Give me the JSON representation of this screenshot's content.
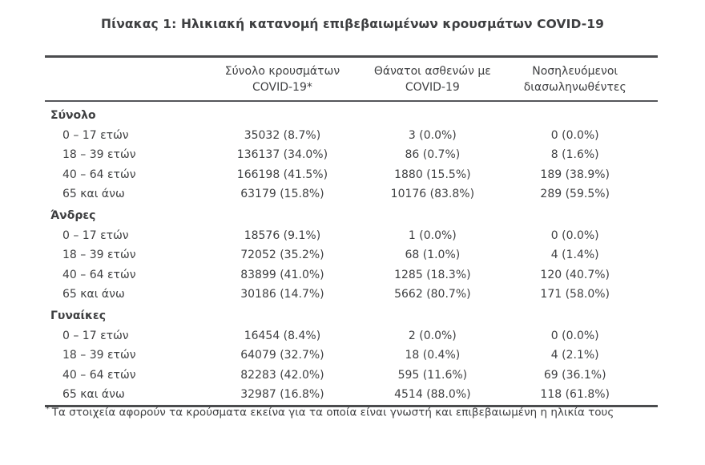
{
  "title": "Πίνακας 1: Ηλικιακή κατανομή επιβεβαιωμένων κρουσμάτων COVID-19",
  "colors": {
    "text": "#3e3f41",
    "border": "#4b4c4e",
    "background": "#ffffff"
  },
  "table": {
    "headers": [
      {
        "line1": "Σύνολο κρουσμάτων",
        "line2": "COVID-19*"
      },
      {
        "line1": "Θάνατοι ασθενών με",
        "line2": "COVID-19"
      },
      {
        "line1": "Νοσηλευόμενοι",
        "line2": "διασωληνωθέντες"
      }
    ],
    "sections": [
      {
        "name": "Σύνολο",
        "rows": [
          {
            "age": "0 – 17 ετών",
            "cases": "35032 (8.7%)",
            "deaths": "3 (0.0%)",
            "intubated": "0 (0.0%)"
          },
          {
            "age": "18 – 39 ετών",
            "cases": "136137 (34.0%)",
            "deaths": "86 (0.7%)",
            "intubated": "8 (1.6%)"
          },
          {
            "age": "40 – 64 ετών",
            "cases": "166198 (41.5%)",
            "deaths": "1880 (15.5%)",
            "intubated": "189 (38.9%)"
          },
          {
            "age": "65 και άνω",
            "cases": "63179 (15.8%)",
            "deaths": "10176 (83.8%)",
            "intubated": "289 (59.5%)"
          }
        ]
      },
      {
        "name": "Άνδρες",
        "rows": [
          {
            "age": "0 – 17 ετών",
            "cases": "18576 (9.1%)",
            "deaths": "1 (0.0%)",
            "intubated": "0 (0.0%)"
          },
          {
            "age": "18 – 39 ετών",
            "cases": "72052 (35.2%)",
            "deaths": "68 (1.0%)",
            "intubated": "4 (1.4%)"
          },
          {
            "age": "40 – 64 ετών",
            "cases": "83899 (41.0%)",
            "deaths": "1285 (18.3%)",
            "intubated": "120 (40.7%)"
          },
          {
            "age": "65 και άνω",
            "cases": "30186 (14.7%)",
            "deaths": "5662 (80.7%)",
            "intubated": "171 (58.0%)"
          }
        ]
      },
      {
        "name": "Γυναίκες",
        "rows": [
          {
            "age": "0 – 17 ετών",
            "cases": "16454 (8.4%)",
            "deaths": "2 (0.0%)",
            "intubated": "0 (0.0%)"
          },
          {
            "age": "18 – 39 ετών",
            "cases": "64079 (32.7%)",
            "deaths": "18 (0.4%)",
            "intubated": "4 (2.1%)"
          },
          {
            "age": "40 – 64 ετών",
            "cases": "82283 (42.0%)",
            "deaths": "595 (11.6%)",
            "intubated": "69 (36.1%)"
          },
          {
            "age": "65 και άνω",
            "cases": "32987 (16.8%)",
            "deaths": "4514 (88.0%)",
            "intubated": "118 (61.8%)"
          }
        ]
      }
    ]
  },
  "footnote": {
    "marker": "*",
    "text": "Τα στοιχεία αφορούν τα κρούσματα εκείνα για τα οποία είναι γνωστή και επιβεβαιωμένη η ηλικία τους"
  }
}
